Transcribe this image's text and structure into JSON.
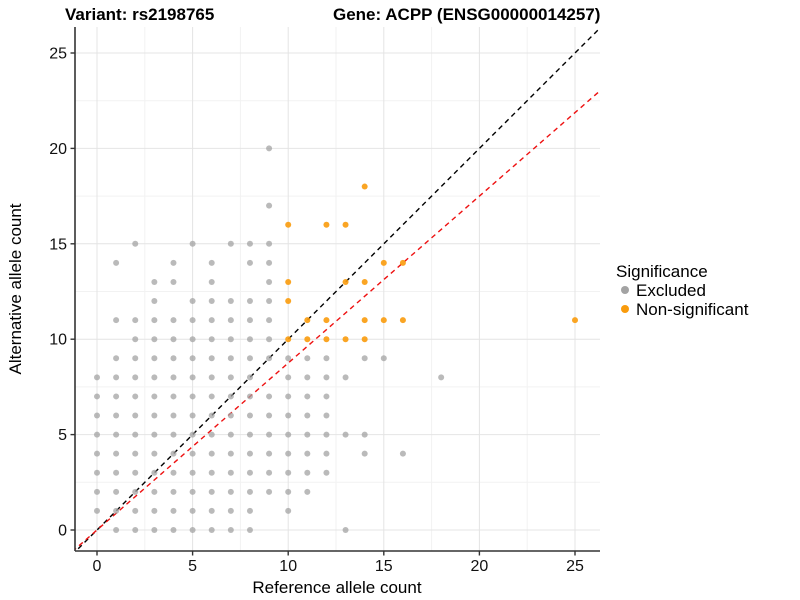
{
  "titles": {
    "variant": "Variant: rs2198765",
    "gene": "Gene: ACPP (ENSG00000014257)"
  },
  "axes": {
    "x": {
      "label": "Reference allele count",
      "ticks": [
        0,
        5,
        10,
        15,
        20,
        25
      ],
      "minor": [
        2.5,
        7.5,
        12.5,
        17.5,
        22.5
      ]
    },
    "y": {
      "label": "Alternative allele count",
      "ticks": [
        0,
        5,
        10,
        15,
        20,
        25
      ],
      "minor": [
        2.5,
        7.5,
        12.5,
        17.5,
        22.5
      ]
    }
  },
  "legend": {
    "title": "Significance",
    "items": [
      {
        "label": "Excluded",
        "color": "#A3A3A3"
      },
      {
        "label": "Non-significant",
        "color": "#F99B0C"
      }
    ]
  },
  "colors": {
    "excluded": "#A3A3A3",
    "non_significant": "#F99B0C",
    "identity_line": "#000000",
    "fit_line": "#EE1111",
    "grid_major": "#E4E4E4",
    "grid_minor": "#F2F2F2",
    "axis": "#333333"
  },
  "chart_data": {
    "type": "scatter",
    "title": "Variant: rs2198765 | Gene: ACPP (ENSG00000014257)",
    "xlabel": "Reference allele count",
    "ylabel": "Alternative allele count",
    "xlim": [
      -1.15,
      26.3
    ],
    "ylim": [
      -1.1,
      26.4
    ],
    "grid": true,
    "legend_position": "right",
    "ref_lines": [
      {
        "name": "identity",
        "slope": 1,
        "intercept": 0,
        "style": "dashed",
        "color": "#000000"
      },
      {
        "name": "fit",
        "slope": 0.875,
        "intercept": 0,
        "style": "dashed",
        "color": "#EE1111"
      }
    ],
    "series": [
      {
        "name": "Excluded",
        "color": "#A3A3A3",
        "opacity": 0.75,
        "points": [
          [
            1,
            0
          ],
          [
            2,
            0
          ],
          [
            3,
            0
          ],
          [
            4,
            0
          ],
          [
            5,
            0
          ],
          [
            6,
            0
          ],
          [
            7,
            0
          ],
          [
            8,
            0
          ],
          [
            13,
            0
          ],
          [
            0,
            1
          ],
          [
            1,
            1
          ],
          [
            2,
            1
          ],
          [
            3,
            1
          ],
          [
            4,
            1
          ],
          [
            5,
            1
          ],
          [
            6,
            1
          ],
          [
            7,
            1
          ],
          [
            8,
            1
          ],
          [
            10,
            1
          ],
          [
            0,
            2
          ],
          [
            1,
            2
          ],
          [
            2,
            2
          ],
          [
            3,
            2
          ],
          [
            4,
            2
          ],
          [
            5,
            2
          ],
          [
            6,
            2
          ],
          [
            7,
            2
          ],
          [
            8,
            2
          ],
          [
            9,
            2
          ],
          [
            10,
            2
          ],
          [
            11,
            2
          ],
          [
            0,
            3
          ],
          [
            1,
            3
          ],
          [
            2,
            3
          ],
          [
            3,
            3
          ],
          [
            4,
            3
          ],
          [
            5,
            3
          ],
          [
            6,
            3
          ],
          [
            7,
            3
          ],
          [
            8,
            3
          ],
          [
            9,
            3
          ],
          [
            10,
            3
          ],
          [
            11,
            3
          ],
          [
            12,
            3
          ],
          [
            0,
            4
          ],
          [
            1,
            4
          ],
          [
            2,
            4
          ],
          [
            3,
            4
          ],
          [
            4,
            4
          ],
          [
            5,
            4
          ],
          [
            6,
            4
          ],
          [
            7,
            4
          ],
          [
            8,
            4
          ],
          [
            9,
            4
          ],
          [
            10,
            4
          ],
          [
            11,
            4
          ],
          [
            12,
            4
          ],
          [
            14,
            4
          ],
          [
            16,
            4
          ],
          [
            0,
            5
          ],
          [
            1,
            5
          ],
          [
            2,
            5
          ],
          [
            3,
            5
          ],
          [
            4,
            5
          ],
          [
            5,
            5
          ],
          [
            6,
            5
          ],
          [
            7,
            5
          ],
          [
            8,
            5
          ],
          [
            9,
            5
          ],
          [
            10,
            5
          ],
          [
            11,
            5
          ],
          [
            12,
            5
          ],
          [
            13,
            5
          ],
          [
            14,
            5
          ],
          [
            0,
            6
          ],
          [
            1,
            6
          ],
          [
            2,
            6
          ],
          [
            3,
            6
          ],
          [
            4,
            6
          ],
          [
            5,
            6
          ],
          [
            6,
            6
          ],
          [
            7,
            6
          ],
          [
            8,
            6
          ],
          [
            9,
            6
          ],
          [
            10,
            6
          ],
          [
            11,
            6
          ],
          [
            12,
            6
          ],
          [
            0,
            7
          ],
          [
            1,
            7
          ],
          [
            2,
            7
          ],
          [
            3,
            7
          ],
          [
            4,
            7
          ],
          [
            5,
            7
          ],
          [
            6,
            7
          ],
          [
            7,
            7
          ],
          [
            8,
            7
          ],
          [
            9,
            7
          ],
          [
            10,
            7
          ],
          [
            11,
            7
          ],
          [
            12,
            7
          ],
          [
            0,
            8
          ],
          [
            1,
            8
          ],
          [
            2,
            8
          ],
          [
            3,
            8
          ],
          [
            4,
            8
          ],
          [
            5,
            8
          ],
          [
            6,
            8
          ],
          [
            7,
            8
          ],
          [
            8,
            8
          ],
          [
            10,
            8
          ],
          [
            11,
            8
          ],
          [
            12,
            8
          ],
          [
            13,
            8
          ],
          [
            18,
            8
          ],
          [
            1,
            9
          ],
          [
            2,
            9
          ],
          [
            3,
            9
          ],
          [
            4,
            9
          ],
          [
            5,
            9
          ],
          [
            6,
            9
          ],
          [
            7,
            9
          ],
          [
            8,
            9
          ],
          [
            9,
            9
          ],
          [
            10,
            9
          ],
          [
            11,
            9
          ],
          [
            12,
            9
          ],
          [
            14,
            9
          ],
          [
            15,
            9
          ],
          [
            2,
            10
          ],
          [
            3,
            10
          ],
          [
            4,
            10
          ],
          [
            5,
            10
          ],
          [
            6,
            10
          ],
          [
            7,
            10
          ],
          [
            8,
            10
          ],
          [
            9,
            10
          ],
          [
            1,
            11
          ],
          [
            2,
            11
          ],
          [
            3,
            11
          ],
          [
            4,
            11
          ],
          [
            5,
            11
          ],
          [
            6,
            11
          ],
          [
            7,
            11
          ],
          [
            8,
            11
          ],
          [
            9,
            11
          ],
          [
            3,
            12
          ],
          [
            5,
            12
          ],
          [
            6,
            12
          ],
          [
            7,
            12
          ],
          [
            8,
            12
          ],
          [
            9,
            12
          ],
          [
            3,
            13
          ],
          [
            4,
            13
          ],
          [
            6,
            13
          ],
          [
            9,
            13
          ],
          [
            1,
            14
          ],
          [
            4,
            14
          ],
          [
            6,
            14
          ],
          [
            8,
            14
          ],
          [
            9,
            14
          ],
          [
            2,
            15
          ],
          [
            5,
            15
          ],
          [
            7,
            15
          ],
          [
            8,
            15
          ],
          [
            9,
            15
          ],
          [
            9,
            17
          ],
          [
            9,
            20
          ]
        ]
      },
      {
        "name": "Non-significant",
        "color": "#F99B0C",
        "opacity": 0.9,
        "points": [
          [
            10,
            10
          ],
          [
            11,
            10
          ],
          [
            12,
            10
          ],
          [
            13,
            10
          ],
          [
            14,
            10
          ],
          [
            11,
            11
          ],
          [
            12,
            11
          ],
          [
            14,
            11
          ],
          [
            15,
            11
          ],
          [
            16,
            11
          ],
          [
            25,
            11
          ],
          [
            10,
            12
          ],
          [
            10,
            13
          ],
          [
            13,
            13
          ],
          [
            14,
            13
          ],
          [
            15,
            14
          ],
          [
            16,
            14
          ],
          [
            10,
            16
          ],
          [
            12,
            16
          ],
          [
            13,
            16
          ],
          [
            14,
            18
          ]
        ]
      }
    ]
  }
}
